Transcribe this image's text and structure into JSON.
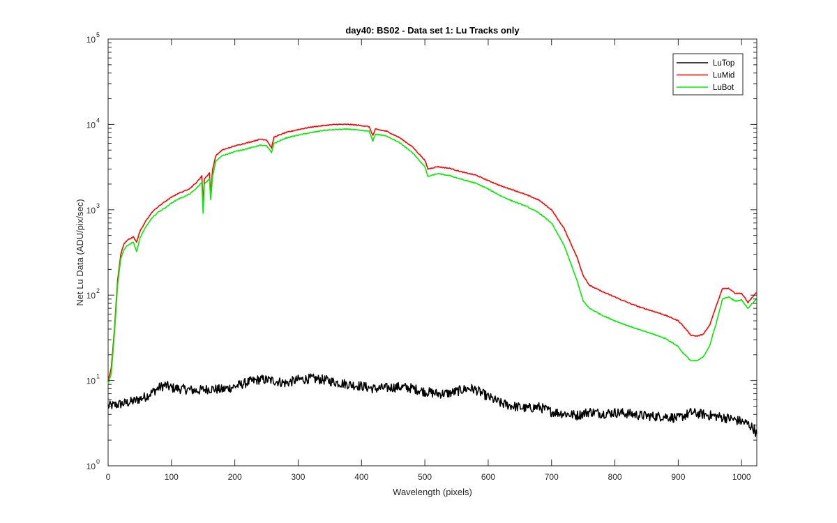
{
  "chart_data": {
    "type": "line",
    "title": "day40: BS02 - Data set 1: Lu Tracks only",
    "xlabel": "Wavelength (pixels)",
    "ylabel": "Net Lu Data (ADU/pix/sec)",
    "xlim": [
      0,
      1024
    ],
    "ylim": [
      1,
      100000
    ],
    "yscale": "log",
    "grid": false,
    "legend_position": "top-right",
    "x_ticks": [
      "0",
      "100",
      "200",
      "300",
      "400",
      "500",
      "600",
      "700",
      "800",
      "900",
      "1000"
    ],
    "y_ticks": [
      {
        "base": "10",
        "exp": "0"
      },
      {
        "base": "10",
        "exp": "1"
      },
      {
        "base": "10",
        "exp": "2"
      },
      {
        "base": "10",
        "exp": "3"
      },
      {
        "base": "10",
        "exp": "4"
      },
      {
        "base": "10",
        "exp": "5"
      }
    ],
    "series": [
      {
        "name": "LuTop",
        "color": "#000000",
        "x": [
          0,
          20,
          40,
          60,
          80,
          90,
          100,
          120,
          140,
          160,
          180,
          200,
          220,
          240,
          260,
          280,
          300,
          320,
          340,
          360,
          380,
          400,
          420,
          440,
          460,
          480,
          500,
          520,
          540,
          560,
          570,
          580,
          600,
          620,
          640,
          660,
          680,
          700,
          720,
          740,
          760,
          780,
          800,
          820,
          840,
          860,
          880,
          900,
          920,
          940,
          960,
          980,
          1000,
          1010,
          1020,
          1024
        ],
        "y": [
          5.0,
          5.3,
          5.7,
          6.5,
          8.2,
          8.8,
          8.2,
          7.9,
          7.6,
          8.0,
          7.8,
          8.5,
          9.5,
          10.3,
          10.0,
          9.3,
          10.2,
          10.5,
          10.2,
          9.5,
          9.0,
          8.6,
          8.0,
          8.2,
          8.4,
          8.1,
          7.4,
          7.0,
          7.1,
          7.8,
          8.1,
          7.8,
          6.4,
          5.4,
          5.0,
          4.7,
          4.9,
          4.3,
          4.1,
          3.9,
          4.3,
          4.1,
          4.2,
          4.1,
          3.9,
          3.8,
          3.8,
          3.6,
          4.2,
          4.0,
          3.8,
          3.6,
          3.3,
          3.1,
          2.7,
          2.3
        ]
      },
      {
        "name": "LuMid",
        "color": "#ff0000",
        "x": [
          0,
          5,
          10,
          15,
          20,
          25,
          30,
          40,
          45,
          50,
          60,
          70,
          80,
          90,
          100,
          110,
          120,
          130,
          140,
          148,
          150,
          152,
          160,
          162,
          165,
          170,
          180,
          200,
          220,
          240,
          250,
          258,
          262,
          280,
          300,
          320,
          340,
          360,
          380,
          400,
          412,
          418,
          422,
          440,
          460,
          480,
          500,
          505,
          520,
          540,
          560,
          580,
          600,
          620,
          640,
          660,
          680,
          700,
          720,
          740,
          750,
          760,
          780,
          800,
          820,
          840,
          860,
          880,
          900,
          905,
          920,
          930,
          940,
          950,
          960,
          970,
          980,
          990,
          1000,
          1010,
          1020,
          1024
        ],
        "y": [
          10,
          14,
          40,
          150,
          300,
          400,
          440,
          480,
          420,
          550,
          750,
          950,
          1100,
          1250,
          1400,
          1550,
          1650,
          1800,
          2100,
          2500,
          1200,
          2300,
          2700,
          1500,
          3000,
          4300,
          5000,
          5600,
          6100,
          6700,
          6600,
          5300,
          7100,
          8000,
          8700,
          9300,
          9700,
          10000,
          10000,
          9700,
          9400,
          7400,
          8800,
          8300,
          7000,
          5500,
          3800,
          3000,
          3200,
          3050,
          2750,
          2550,
          2200,
          1900,
          1700,
          1500,
          1300,
          1000,
          600,
          280,
          170,
          130,
          110,
          95,
          82,
          72,
          65,
          58,
          50,
          46,
          34,
          33,
          35,
          45,
          75,
          120,
          120,
          105,
          105,
          82,
          100,
          108
        ]
      },
      {
        "name": "LuBot",
        "color": "#00ee00",
        "x": [
          0,
          5,
          10,
          15,
          20,
          25,
          30,
          40,
          45,
          50,
          60,
          70,
          80,
          90,
          100,
          110,
          120,
          130,
          140,
          148,
          150,
          152,
          160,
          162,
          165,
          170,
          180,
          200,
          220,
          240,
          250,
          258,
          262,
          280,
          300,
          320,
          340,
          360,
          380,
          400,
          412,
          418,
          422,
          440,
          460,
          480,
          500,
          505,
          520,
          540,
          560,
          580,
          600,
          620,
          640,
          660,
          680,
          700,
          720,
          740,
          750,
          760,
          780,
          800,
          820,
          840,
          860,
          880,
          900,
          905,
          920,
          930,
          940,
          950,
          960,
          970,
          980,
          990,
          1000,
          1010,
          1020,
          1024
        ],
        "y": [
          9,
          12,
          35,
          130,
          270,
          340,
          380,
          420,
          320,
          460,
          640,
          810,
          950,
          1050,
          1200,
          1330,
          1420,
          1550,
          1800,
          2100,
          900,
          2000,
          2300,
          1300,
          2500,
          3700,
          4300,
          4800,
          5200,
          5700,
          5600,
          4700,
          6000,
          6900,
          7500,
          8000,
          8500,
          8700,
          8800,
          8500,
          8300,
          6400,
          7700,
          7300,
          6100,
          4700,
          3200,
          2450,
          2650,
          2500,
          2250,
          2050,
          1750,
          1450,
          1250,
          1100,
          920,
          700,
          380,
          150,
          85,
          70,
          58,
          50,
          44,
          39,
          35,
          31,
          25,
          22,
          17,
          17,
          19,
          26,
          47,
          90,
          95,
          85,
          88,
          70,
          85,
          92
        ]
      }
    ]
  }
}
